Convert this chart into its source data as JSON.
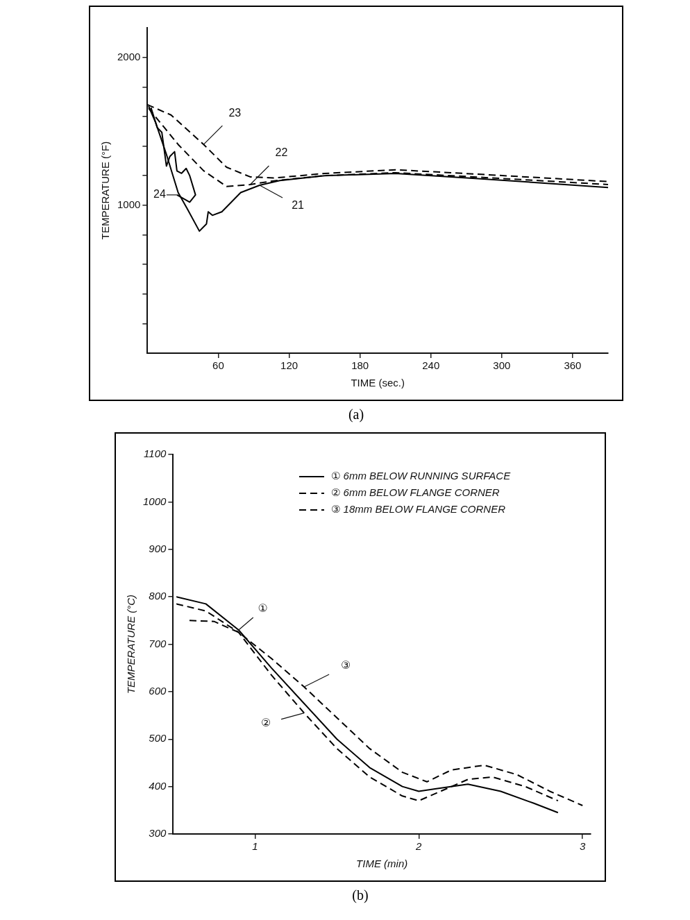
{
  "chart_data": [
    {
      "type": "line",
      "xlabel": "TIME (sec.)",
      "ylabel": "TEMPERATURE (°F)",
      "xlim": [
        0,
        390
      ],
      "xticks": [
        60,
        120,
        180,
        240,
        300,
        360
      ],
      "ylim": [
        0,
        2200
      ],
      "yticks": [
        {
          "value": 200,
          "label": null
        },
        {
          "value": 400,
          "label": null
        },
        {
          "value": 600,
          "label": null
        },
        {
          "value": 800,
          "label": null
        },
        1000,
        {
          "value": 1200,
          "label": null
        },
        {
          "value": 1400,
          "label": null
        },
        {
          "value": 1600,
          "label": null
        },
        {
          "value": 1800,
          "label": null
        },
        2000
      ],
      "grid": false,
      "legend": false,
      "marker": "none",
      "series": [
        {
          "color": "#000000",
          "line_style": "solid",
          "x": [
            1,
            7,
            16,
            26,
            34,
            44,
            50,
            51.5,
            55,
            63,
            79,
            95,
            112,
            150,
            210,
            280,
            390
          ],
          "values": [
            1670,
            1558,
            1346,
            1086,
            972,
            825,
            874,
            956,
            932,
            956,
            1086,
            1135,
            1167,
            1200,
            1215,
            1180,
            1120
          ]
        },
        {
          "color": "#000000",
          "line_style": "dashed",
          "x": [
            1,
            26,
            47.6,
            67,
            87,
            107,
            150,
            210,
            280,
            390
          ],
          "values": [
            1655,
            1411,
            1233,
            1127,
            1140,
            1165,
            1200,
            1220,
            1190,
            1140
          ]
        },
        {
          "color": "#000000",
          "line_style": "dashed",
          "x": [
            0,
            20,
            47.6,
            67,
            87,
            107,
            150,
            210,
            280,
            390
          ],
          "values": [
            1680,
            1610,
            1411,
            1257,
            1192,
            1184,
            1215,
            1240,
            1210,
            1160
          ]
        },
        {
          "color": "#000000",
          "line_style": "solid",
          "x": [
            3,
            8.3,
            12.2,
            16.1,
            19,
            23,
            25,
            28.9,
            32.8,
            35.8,
            40.7,
            35.8,
            25
          ],
          "values": [
            1660,
            1525,
            1493,
            1265,
            1330,
            1362,
            1232,
            1216,
            1249,
            1200,
            1070,
            1021,
            1070
          ]
        }
      ],
      "annotations": [
        {
          "text": "23",
          "x": 47.6,
          "y": 1411
        },
        {
          "text": "22",
          "x": 87,
          "y": 1140
        },
        {
          "text": "21",
          "x": 95,
          "y": 1135
        },
        {
          "text": "24",
          "x": 25,
          "y": 1070
        },
        "(a)"
      ]
    },
    {
      "type": "line",
      "xlabel": "TIME (min)",
      "ylabel": "TEMPERATURE (°C)",
      "xlim": [
        0.5,
        3.05
      ],
      "xticks": [
        1,
        2,
        3
      ],
      "ylim": [
        300,
        1100
      ],
      "yticks": [
        300,
        400,
        500,
        600,
        700,
        800,
        900,
        1000,
        1100
      ],
      "grid": false,
      "legend": "top right",
      "marker": "none",
      "series": [
        {
          "name": "① 6mm BELOW RUNNING SURFACE",
          "color": "#000000",
          "line_style": "solid",
          "x": [
            0.52,
            0.7,
            0.9,
            1.1,
            1.3,
            1.5,
            1.7,
            1.9,
            2.0,
            2.1,
            2.3,
            2.5,
            2.7,
            2.85
          ],
          "values": [
            800,
            785,
            730,
            650,
            575,
            500,
            440,
            400,
            390,
            395,
            405,
            390,
            365,
            345
          ]
        },
        {
          "name": "② 6mm BELOW FLANGE CORNER",
          "color": "#000000",
          "line_style": "dashed",
          "x": [
            0.52,
            0.7,
            0.9,
            1.1,
            1.3,
            1.5,
            1.7,
            1.9,
            2.0,
            2.1,
            2.3,
            2.45,
            2.65,
            2.85
          ],
          "values": [
            785,
            770,
            725,
            635,
            555,
            480,
            420,
            380,
            370,
            385,
            415,
            420,
            400,
            370
          ]
        },
        {
          "name": "③ 18mm BELOW FLANGE CORNER",
          "color": "#000000",
          "line_style": "dashed",
          "x": [
            0.6,
            0.75,
            0.9,
            1.1,
            1.3,
            1.5,
            1.7,
            1.9,
            2.05,
            2.2,
            2.4,
            2.6,
            2.8,
            3.0
          ],
          "values": [
            750,
            748,
            725,
            670,
            610,
            545,
            480,
            430,
            410,
            435,
            445,
            425,
            390,
            360
          ]
        }
      ],
      "annotations": [
        {
          "text": "①",
          "x": 0.9,
          "y": 730
        },
        {
          "text": "③",
          "x": 1.3,
          "y": 610
        },
        {
          "text": "②",
          "x": 1.3,
          "y": 555
        },
        "(b)"
      ]
    }
  ]
}
